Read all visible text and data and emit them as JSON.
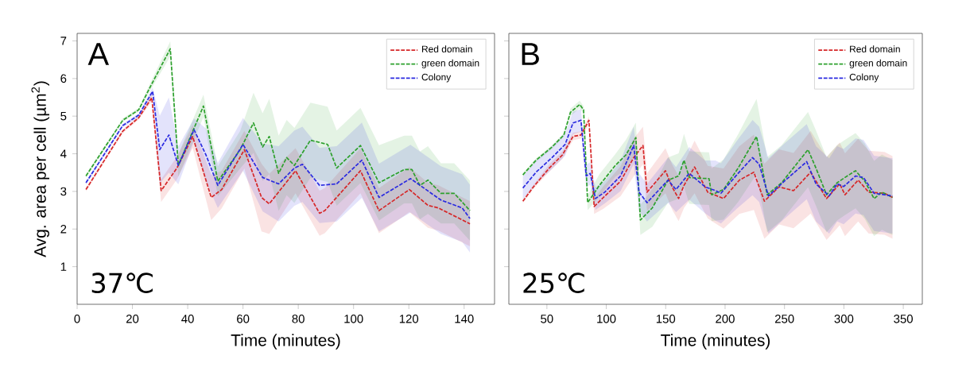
{
  "chart_data": [
    {
      "type": "line",
      "xlabel": "Time (minutes)",
      "ylabel": "Avg. area per cell (µm$^{2}$)",
      "xlim": [
        0,
        151
      ],
      "ylim": [
        0,
        7.2
      ],
      "xticks": [
        0,
        20,
        40,
        60,
        80,
        100,
        120,
        140
      ],
      "yticks": [
        1,
        2,
        3,
        4,
        5,
        6,
        7
      ],
      "legend": "top right",
      "line_style": "dashed",
      "annotations": [
        "A",
        "37℃"
      ],
      "series": [
        {
          "name": "Red domain",
          "color": "#d62728",
          "x": [
            3.2,
            16.5,
            22.3,
            27,
            30.4,
            36.1,
            41.8,
            48.5,
            52.3,
            60.5,
            66.7,
            69.5,
            79,
            87.7,
            89.6,
            102.5,
            109.2,
            120.2,
            126.9,
            130.7,
            142.1
          ],
          "values": [
            3.05,
            4.6,
            4.96,
            5.49,
            3.02,
            3.62,
            4.46,
            2.84,
            3.05,
            4.11,
            2.84,
            2.67,
            3.55,
            2.42,
            2.49,
            3.55,
            2.49,
            3.05,
            2.63,
            2.56,
            2.14
          ],
          "lower": [
            3.0,
            4.55,
            4.91,
            5.39,
            2.72,
            3.32,
            4.16,
            2.24,
            2.55,
            3.61,
            1.94,
            1.87,
            2.95,
            1.82,
            1.89,
            2.95,
            1.89,
            2.45,
            2.03,
            1.96,
            1.54
          ],
          "upper": [
            3.1,
            4.65,
            5.01,
            5.59,
            3.32,
            3.92,
            4.76,
            3.44,
            3.55,
            4.61,
            3.74,
            3.47,
            4.15,
            3.02,
            3.09,
            4.15,
            3.09,
            3.65,
            3.23,
            3.16,
            2.74
          ]
        },
        {
          "name": "green domain",
          "color": "#2ca02c",
          "x": [
            3.2,
            16.5,
            22.3,
            26.6,
            33.7,
            36.6,
            45.7,
            50.9,
            59,
            63.8,
            67.1,
            69.5,
            72.9,
            75.8,
            78.6,
            84.4,
            90.6,
            93.9,
            102.5,
            109.2,
            118.3,
            121.1,
            124,
            126.9,
            131.6,
            136.4,
            142.1
          ],
          "values": [
            3.41,
            4.89,
            5.17,
            5.8,
            6.79,
            3.69,
            5.27,
            3.27,
            4.11,
            4.82,
            4.18,
            4.46,
            3.48,
            3.9,
            3.69,
            4.36,
            4.25,
            3.62,
            4.22,
            3.23,
            3.58,
            3.58,
            3.16,
            3.3,
            2.95,
            2.95,
            2.49
          ],
          "lower": [
            3.36,
            4.84,
            5.12,
            5.7,
            6.59,
            3.39,
            4.97,
            2.87,
            3.61,
            4.02,
            3.28,
            3.46,
            2.48,
            2.9,
            2.69,
            3.36,
            3.25,
            2.62,
            3.22,
            2.23,
            2.68,
            2.68,
            2.26,
            2.4,
            2.15,
            2.15,
            1.69
          ],
          "upper": [
            3.46,
            4.94,
            5.22,
            5.9,
            6.99,
            3.99,
            5.57,
            3.67,
            4.61,
            5.62,
            5.08,
            5.46,
            4.48,
            4.9,
            4.69,
            5.36,
            5.25,
            4.62,
            5.22,
            4.23,
            4.48,
            4.48,
            4.06,
            4.2,
            3.75,
            3.75,
            3.29
          ]
        },
        {
          "name": "Colony",
          "color": "#2a2ae0",
          "x": [
            3.2,
            16.5,
            22.3,
            27.3,
            29.9,
            33.2,
            36.6,
            42.3,
            46.6,
            50.9,
            60,
            67.1,
            72.9,
            78.6,
            81.5,
            87.7,
            93.9,
            103,
            109.2,
            120.6,
            131.6,
            139.3,
            142.1
          ],
          "values": [
            3.23,
            4.75,
            5.03,
            5.66,
            4.11,
            4.5,
            3.69,
            4.64,
            3.97,
            3.16,
            4.25,
            3.37,
            3.2,
            3.62,
            3.72,
            3.16,
            3.2,
            3.83,
            2.84,
            3.34,
            2.77,
            2.56,
            2.28
          ],
          "lower": [
            3.18,
            4.7,
            4.98,
            5.56,
            3.21,
            3.5,
            3.19,
            4.34,
            3.27,
            2.56,
            3.55,
            2.47,
            2.2,
            2.62,
            2.72,
            2.16,
            2.2,
            2.83,
            1.94,
            2.44,
            1.87,
            1.66,
            1.38
          ],
          "upper": [
            3.28,
            4.8,
            5.08,
            5.76,
            5.01,
            5.5,
            4.19,
            4.94,
            4.67,
            3.76,
            4.95,
            4.27,
            4.2,
            4.62,
            4.72,
            4.16,
            4.2,
            4.83,
            3.74,
            4.24,
            3.67,
            3.46,
            3.18
          ]
        }
      ]
    },
    {
      "type": "line",
      "xlabel": "Time (minutes)",
      "xlim": [
        18,
        366
      ],
      "ylim": [
        0,
        7.2
      ],
      "xticks": [
        50,
        100,
        150,
        200,
        250,
        300,
        350
      ],
      "yticks": [
        1,
        2,
        3,
        4,
        5,
        6,
        7
      ],
      "tick_labels": "x",
      "legend": "top right",
      "line_style": "dashed",
      "annotations": [
        "B",
        "25℃"
      ],
      "series": [
        {
          "name": "Red domain",
          "color": "#d62728",
          "x": [
            29.8,
            38.7,
            52,
            63.1,
            72,
            78.7,
            85.4,
            89.8,
            97.6,
            112,
            123.1,
            130.9,
            134.3,
            149.8,
            155.4,
            160.9,
            165.4,
            174.3,
            185.4,
            198.7,
            212,
            224.2,
            233.1,
            245.4,
            257.6,
            272,
            285.4,
            296.5,
            300.9,
            312,
            320.9,
            334.2,
            340.9
          ],
          "values": [
            2.74,
            3.12,
            3.62,
            3.97,
            4.46,
            4.5,
            4.89,
            2.6,
            2.84,
            3.27,
            3.9,
            4.22,
            2.98,
            3.55,
            3.12,
            2.81,
            3.16,
            3.65,
            2.98,
            2.81,
            3.3,
            3.51,
            2.74,
            3.12,
            3.02,
            3.51,
            2.81,
            3.2,
            2.91,
            3.3,
            2.98,
            2.95,
            2.84
          ],
          "lower": [
            2.69,
            3.07,
            3.52,
            3.87,
            4.36,
            4.4,
            4.79,
            2.4,
            2.54,
            2.87,
            3.4,
            3.72,
            2.48,
            2.95,
            2.52,
            2.21,
            2.56,
            2.95,
            2.28,
            2.01,
            2.4,
            2.51,
            1.74,
            2.12,
            2.02,
            2.41,
            1.71,
            2.1,
            1.81,
            2.2,
            1.88,
            1.85,
            1.74
          ],
          "upper": [
            2.79,
            3.17,
            3.72,
            4.07,
            4.56,
            4.6,
            4.99,
            2.8,
            3.14,
            3.67,
            4.4,
            4.72,
            3.48,
            4.15,
            3.72,
            3.41,
            3.76,
            4.35,
            3.68,
            3.61,
            4.2,
            4.51,
            3.74,
            4.12,
            4.02,
            4.61,
            3.91,
            4.3,
            4.01,
            4.4,
            4.08,
            4.05,
            3.94
          ]
        },
        {
          "name": "green domain",
          "color": "#2ca02c",
          "x": [
            29.8,
            40.9,
            54.3,
            64.3,
            69.8,
            77.6,
            80.9,
            84.3,
            94.2,
            107.6,
            116.5,
            124.9,
            128.7,
            138.7,
            152,
            160.9,
            165.4,
            169.8,
            178.7,
            186.5,
            188.7,
            198.7,
            211,
            226.5,
            235.4,
            247.6,
            269.8,
            276.5,
            285.4,
            294.3,
            300.9,
            309.8,
            317.6,
            325.4,
            332,
            340.9
          ],
          "values": [
            3.44,
            3.83,
            4.18,
            4.5,
            5.1,
            5.31,
            5.17,
            2.7,
            3.16,
            3.69,
            3.97,
            4.43,
            2.24,
            2.56,
            3.3,
            3.41,
            3.83,
            3.37,
            3.35,
            3.34,
            2.91,
            3.05,
            3.62,
            4.46,
            2.91,
            3.23,
            4.11,
            3.62,
            2.91,
            3.23,
            3.37,
            3.55,
            3.27,
            2.81,
            2.98,
            2.84
          ],
          "lower": [
            3.39,
            3.78,
            4.13,
            4.45,
            5.0,
            5.21,
            5.07,
            2.5,
            2.86,
            3.39,
            3.57,
            4.03,
            1.84,
            2.06,
            2.7,
            2.81,
            3.13,
            2.67,
            2.65,
            2.64,
            2.21,
            2.25,
            2.72,
            3.46,
            1.91,
            2.23,
            3.11,
            2.62,
            1.91,
            2.23,
            2.37,
            2.55,
            2.27,
            1.81,
            1.98,
            1.84
          ],
          "upper": [
            3.49,
            3.88,
            4.23,
            4.55,
            5.2,
            5.41,
            5.27,
            2.9,
            3.46,
            3.99,
            4.37,
            4.83,
            2.64,
            3.06,
            3.9,
            4.01,
            4.53,
            4.07,
            4.05,
            4.04,
            3.61,
            3.85,
            4.52,
            5.46,
            3.91,
            4.23,
            5.11,
            4.62,
            3.91,
            4.23,
            4.37,
            4.55,
            4.27,
            3.81,
            3.98,
            3.84
          ]
        },
        {
          "name": "Colony",
          "color": "#2a2ae0",
          "x": [
            29.8,
            40.9,
            54.3,
            65.4,
            72,
            78.7,
            83.1,
            86.5,
            90.9,
            98.7,
            112,
            123.1,
            127.6,
            134.3,
            152,
            158.7,
            169.8,
            183.2,
            192,
            196.5,
            209.8,
            223.1,
            228.7,
            236.5,
            249.8,
            268.7,
            276.5,
            287.6,
            294.3,
            299.8,
            309.8,
            316.5,
            325.4,
            334.2,
            340.9
          ],
          "values": [
            3.09,
            3.51,
            3.9,
            4.25,
            4.82,
            4.89,
            3.41,
            3.48,
            2.81,
            2.98,
            3.41,
            4.22,
            2.98,
            2.7,
            3.3,
            3.05,
            3.48,
            3.12,
            3.02,
            2.95,
            3.44,
            3.9,
            3.72,
            2.88,
            3.27,
            3.79,
            3.2,
            2.88,
            3.2,
            3.13,
            3.41,
            3.37,
            2.95,
            2.91,
            2.88
          ],
          "lower": [
            2.79,
            3.21,
            3.6,
            3.95,
            4.52,
            4.59,
            3.11,
            3.18,
            2.51,
            2.68,
            3.01,
            3.72,
            2.48,
            2.2,
            2.7,
            2.45,
            2.78,
            2.42,
            2.22,
            2.15,
            2.54,
            2.9,
            2.72,
            1.88,
            2.27,
            2.79,
            2.2,
            1.88,
            2.2,
            2.13,
            2.41,
            2.37,
            1.95,
            1.91,
            1.88
          ],
          "upper": [
            3.39,
            3.81,
            4.2,
            4.55,
            5.12,
            5.19,
            3.71,
            3.78,
            3.11,
            3.28,
            3.81,
            4.72,
            3.48,
            3.2,
            3.9,
            3.65,
            4.18,
            3.82,
            3.82,
            3.75,
            4.34,
            4.9,
            4.72,
            3.88,
            4.27,
            4.79,
            4.2,
            3.88,
            4.2,
            4.13,
            4.41,
            4.37,
            3.95,
            3.91,
            3.88
          ]
        }
      ]
    }
  ]
}
